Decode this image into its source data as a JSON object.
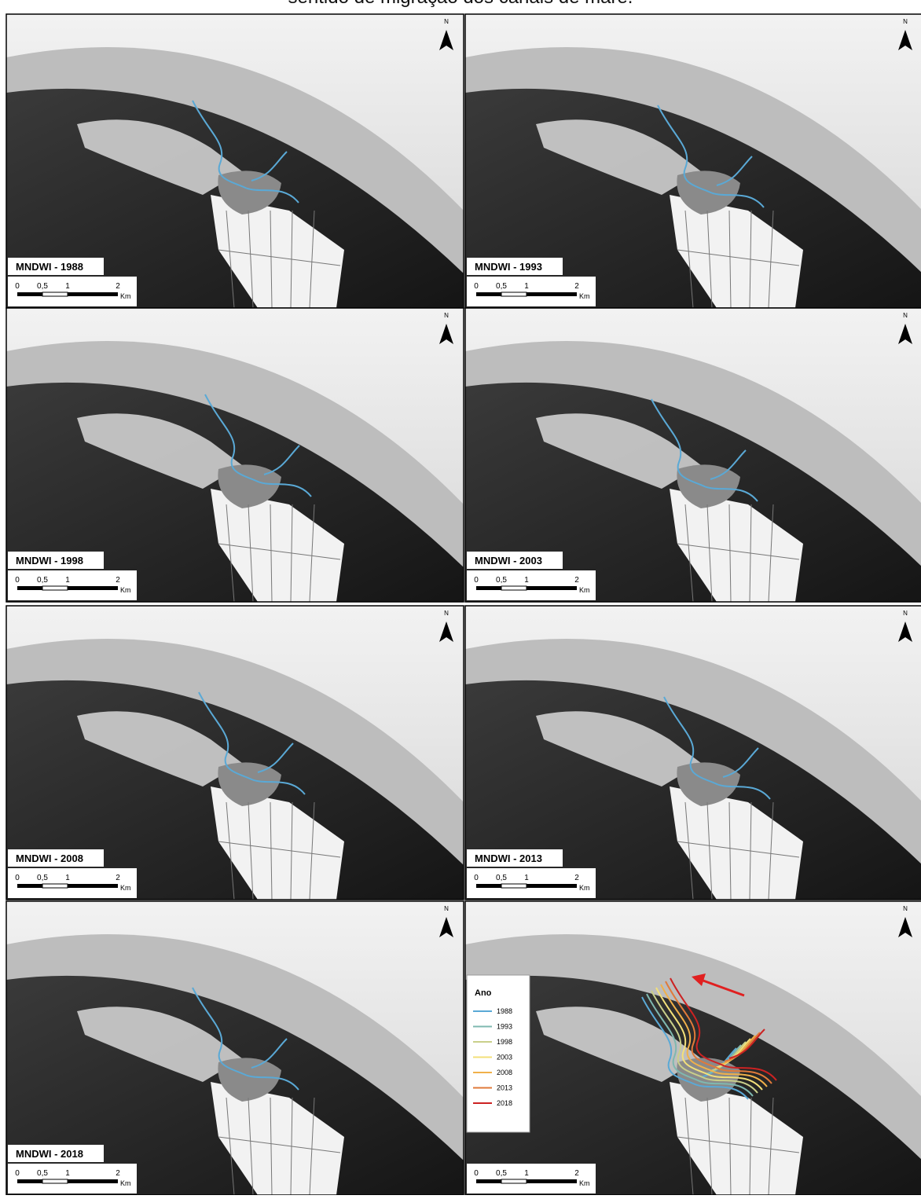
{
  "title": "sentido de migração dos canais de maré.",
  "north": "N",
  "scale": {
    "labels": [
      "0",
      "0,5",
      "1",
      "2"
    ],
    "unit": "Km"
  },
  "panels": [
    {
      "label": "MNDWI - 1988"
    },
    {
      "label": "MNDWI - 1993"
    },
    {
      "label": "MNDWI - 1998"
    },
    {
      "label": "MNDWI - 2003"
    },
    {
      "label": "MNDWI - 2008"
    },
    {
      "label": "MNDWI - 2013"
    },
    {
      "label": "MNDWI - 2018"
    }
  ],
  "legend": {
    "title": "Ano",
    "items": [
      {
        "label": "1988",
        "color": "#5aa9d6"
      },
      {
        "label": "1993",
        "color": "#7fb8b0"
      },
      {
        "label": "1998",
        "color": "#c9cf8a"
      },
      {
        "label": "2003",
        "color": "#f3e07a"
      },
      {
        "label": "2008",
        "color": "#f0b04a"
      },
      {
        "label": "2013",
        "color": "#e07a3a"
      },
      {
        "label": "2018",
        "color": "#cc2222"
      }
    ]
  }
}
